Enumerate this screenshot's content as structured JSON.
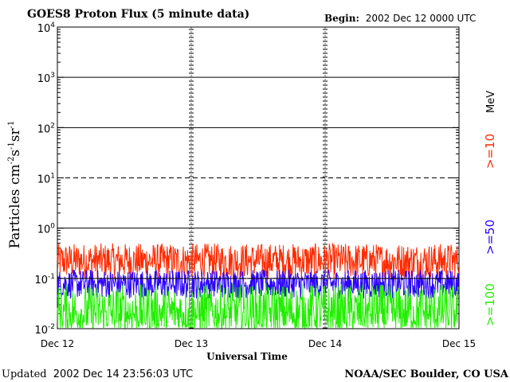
{
  "chart_data": {
    "type": "line",
    "title": "GOES8 Proton Flux (5 minute data)",
    "begin_label": "Begin:",
    "begin_value": "2002 Dec 12 0000 UTC",
    "xlabel": "Universal Time",
    "ylabel": {
      "base": "Particles cm",
      "exp1": "-2",
      "s": "s",
      "exp2": "-1",
      "sr": "sr",
      "exp3": "-1"
    },
    "x_ticks": [
      "Dec 12",
      "Dec 13",
      "Dec 14",
      "Dec 15"
    ],
    "y_scale": "log",
    "ylim": [
      0.01,
      10000
    ],
    "y_ticks": [
      {
        "base": "10",
        "exp": "-2"
      },
      {
        "base": "10",
        "exp": "-1"
      },
      {
        "base": "10",
        "exp": "0"
      },
      {
        "base": "10",
        "exp": "1"
      },
      {
        "base": "10",
        "exp": "2"
      },
      {
        "base": "10",
        "exp": "3"
      },
      {
        "base": "10",
        "exp": "4"
      }
    ],
    "grid": {
      "solid_decades": [
        1,
        100,
        1000
      ],
      "dashed_decades": [
        10,
        0.1
      ]
    },
    "threshold_line": 0.1,
    "legend_placement": "right",
    "legend_unit": "MeV",
    "series": [
      {
        "name": ">=10",
        "color": "#ff2a00",
        "typical_range": [
          0.1,
          0.5
        ]
      },
      {
        "name": ">=50",
        "color": "#2a00ff",
        "typical_range": [
          0.04,
          0.15
        ]
      },
      {
        "name": ">=100",
        "color": "#22ee00",
        "typical_range": [
          0.01,
          0.08
        ]
      }
    ]
  },
  "footer": {
    "updated_label": "Updated",
    "updated_value": "2002 Dec 14 23:56:03 UTC",
    "credit": "NOAA/SEC Boulder, CO USA"
  }
}
